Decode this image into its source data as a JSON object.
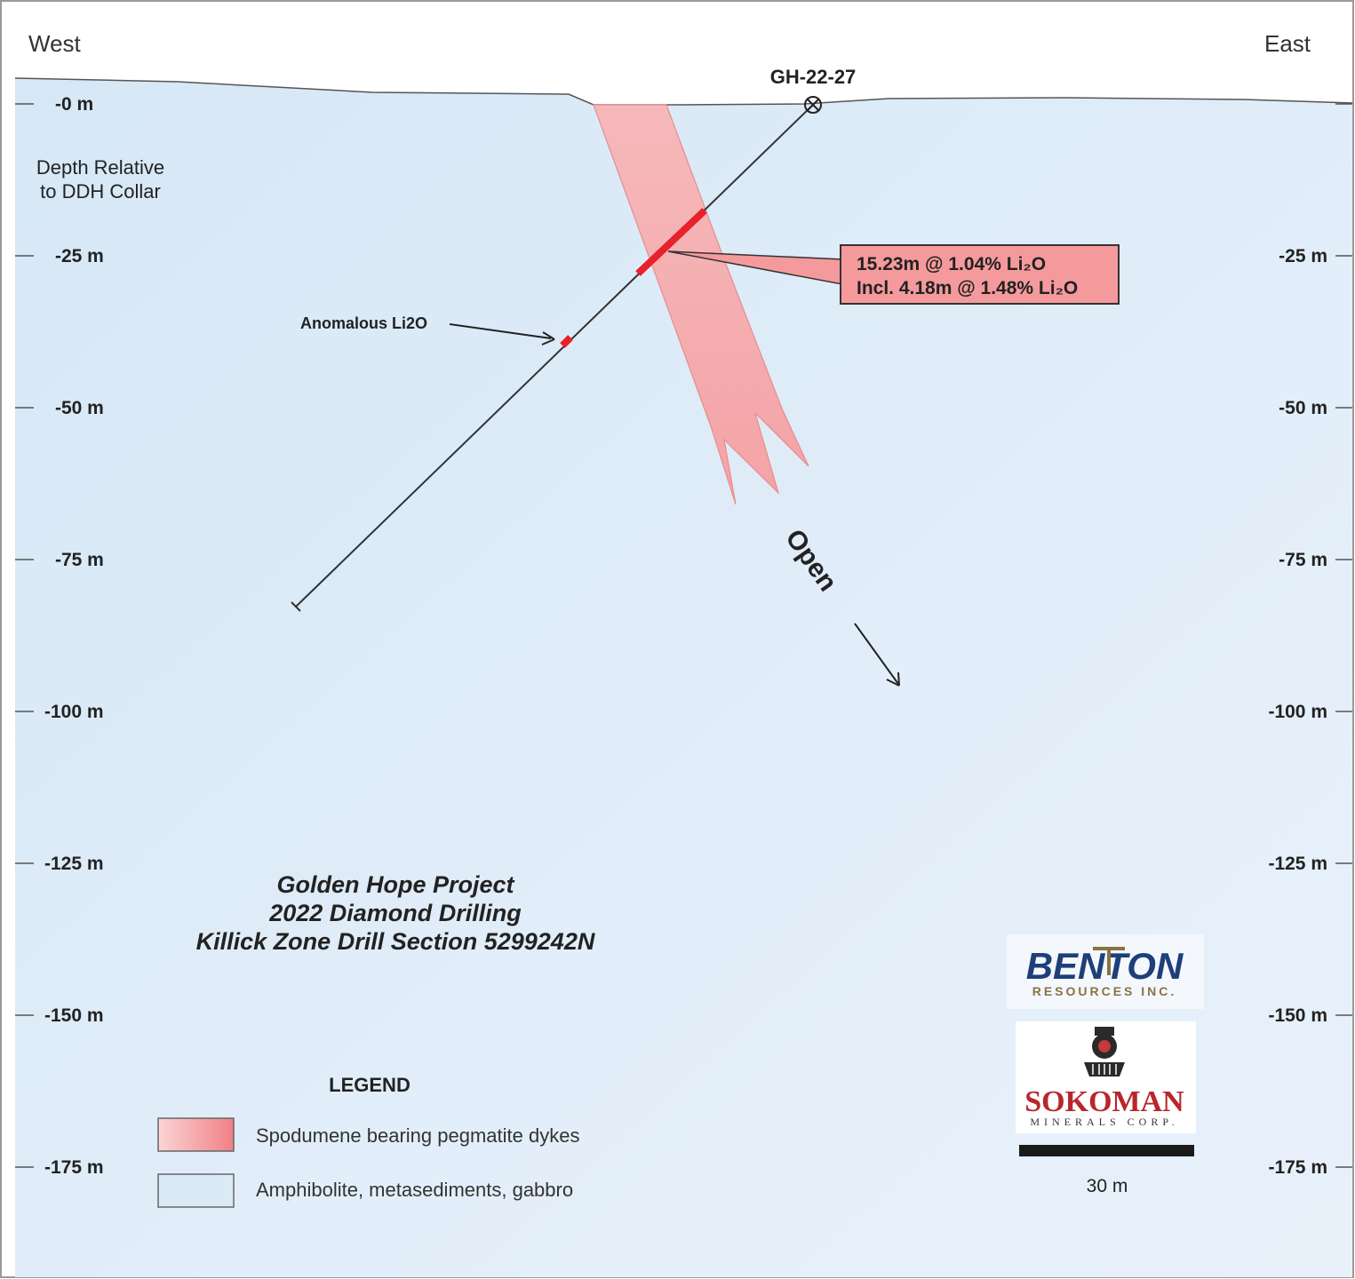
{
  "directions": {
    "west": "West",
    "east": "East"
  },
  "depth_label_line1": "Depth Relative",
  "depth_label_line2": "to DDH Collar",
  "depth_ticks": [
    "-0 m",
    "-25 m",
    "-50 m",
    "-75 m",
    "-100 m",
    "-125 m",
    "-150 m",
    "-175 m"
  ],
  "depth_ticks_right": [
    "-25 m",
    "-50 m",
    "-75 m",
    "-100 m",
    "-125 m",
    "-150 m",
    "-175 m"
  ],
  "drillhole": {
    "name": "GH-22-27"
  },
  "intercept": {
    "line1": "15.23m @ 1.04% Li₂O",
    "line2": "Incl. 4.18m @ 1.48% Li₂O"
  },
  "anomalous_label": "Anomalous Li2O",
  "open_label": "Open",
  "title": {
    "line1": "Golden Hope Project",
    "line2": "2022 Diamond Drilling",
    "line3": "Killick Zone Drill Section 5299242N"
  },
  "legend": {
    "heading": "LEGEND",
    "items": [
      {
        "label": "Spodumene bearing pegmatite dykes",
        "color": "#f28a8e"
      },
      {
        "label": "Amphibolite, metasediments, gabbro",
        "color": "#dbeaf7"
      }
    ]
  },
  "logos": {
    "benton_main": "BENTON",
    "benton_sub": "RESOURCES INC.",
    "sokoman_main": "SOKOMAN",
    "sokoman_sub": "MINERALS CORP."
  },
  "scale_bar": {
    "label": "30 m"
  },
  "colors": {
    "background": "#dcebf8",
    "pegmatite": "#f4a6a8",
    "intercept": "#e8212a",
    "callout_fill": "#f59a9c"
  }
}
